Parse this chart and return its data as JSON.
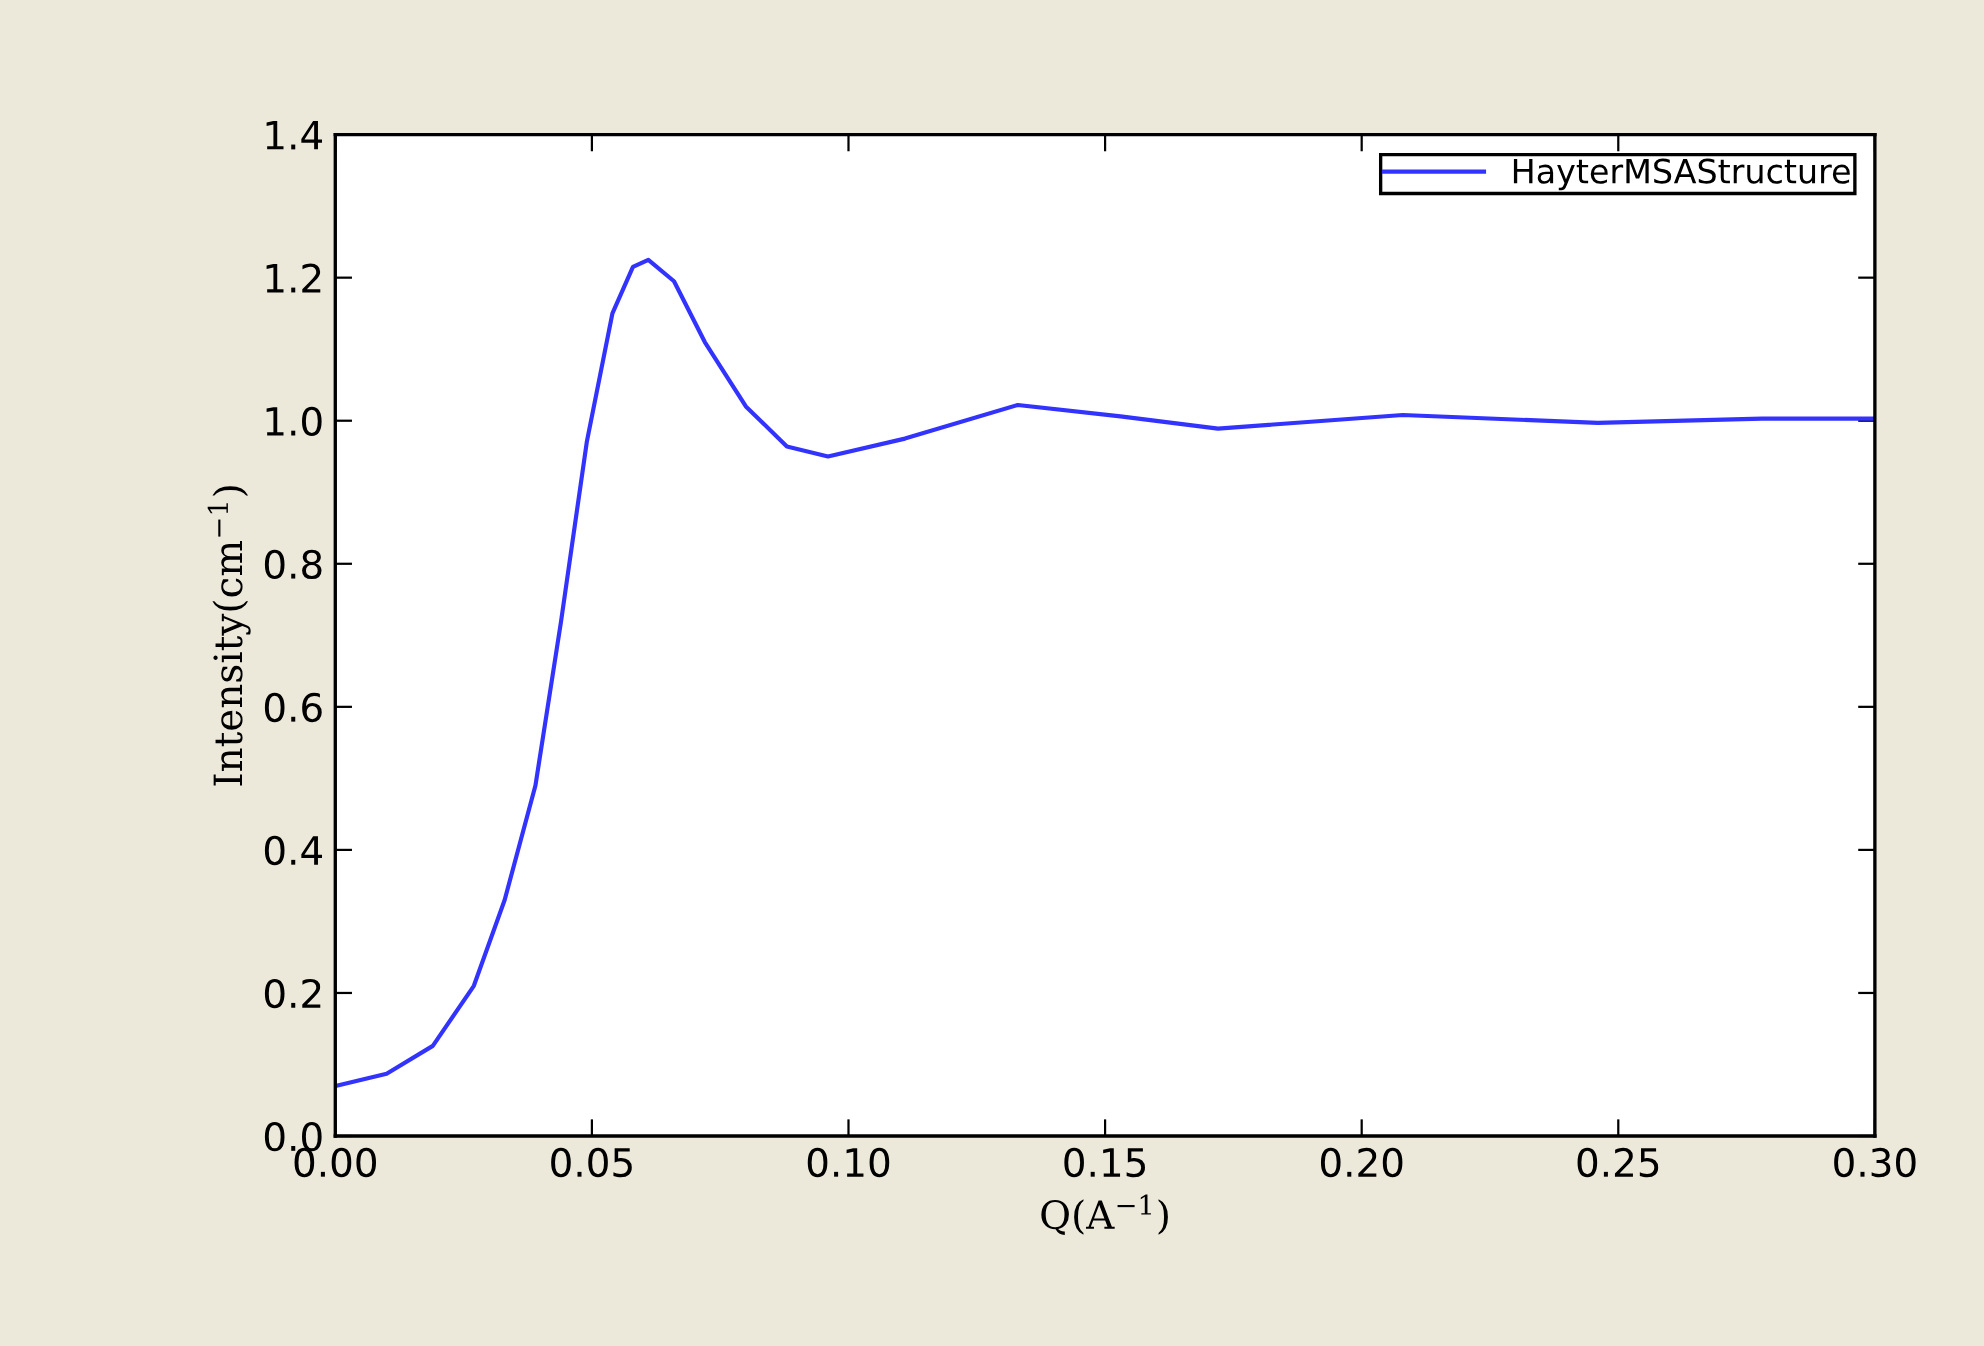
{
  "chart_data": {
    "type": "line",
    "xlabel": "Q(A$^{−1}$)",
    "ylabel": "Intensity(cm$^{−1}$)",
    "series": [
      {
        "name": "HayterMSAStructure",
        "color": "#3333ff",
        "x": [
          0.0,
          0.01,
          0.019,
          0.027,
          0.033,
          0.039,
          0.044,
          0.049,
          0.054,
          0.058,
          0.061,
          0.066,
          0.072,
          0.08,
          0.088,
          0.096,
          0.111,
          0.133,
          0.153,
          0.172,
          0.208,
          0.246,
          0.278,
          0.3
        ],
        "values": [
          0.07,
          0.087,
          0.126,
          0.21,
          0.33,
          0.49,
          0.72,
          0.97,
          1.15,
          1.215,
          1.225,
          1.195,
          1.11,
          1.02,
          0.964,
          0.95,
          0.975,
          1.022,
          1.006,
          0.989,
          1.008,
          0.997,
          1.003,
          1.003
        ]
      }
    ],
    "xlim": [
      0.0,
      0.3
    ],
    "ylim": [
      0.0,
      1.4
    ],
    "xticks": [
      {
        "value": 0.0,
        "label": "0.00"
      },
      {
        "value": 0.05,
        "label": "0.05"
      },
      {
        "value": 0.1,
        "label": "0.10"
      },
      {
        "value": 0.15,
        "label": "0.15"
      },
      {
        "value": 0.2,
        "label": "0.20"
      },
      {
        "value": 0.25,
        "label": "0.25"
      },
      {
        "value": 0.3,
        "label": "0.30"
      }
    ],
    "yticks": [
      {
        "value": 0.0,
        "label": "0.0"
      },
      {
        "value": 0.2,
        "label": "0.2"
      },
      {
        "value": 0.4,
        "label": "0.4"
      },
      {
        "value": 0.6,
        "label": "0.6"
      },
      {
        "value": 0.8,
        "label": "0.8"
      },
      {
        "value": 1.0,
        "label": "1.0"
      },
      {
        "value": 1.2,
        "label": "1.2"
      },
      {
        "value": 1.4,
        "label": "1.4"
      }
    ],
    "grid": false,
    "legend": "top right",
    "marker": "none",
    "line_style": "solid"
  }
}
